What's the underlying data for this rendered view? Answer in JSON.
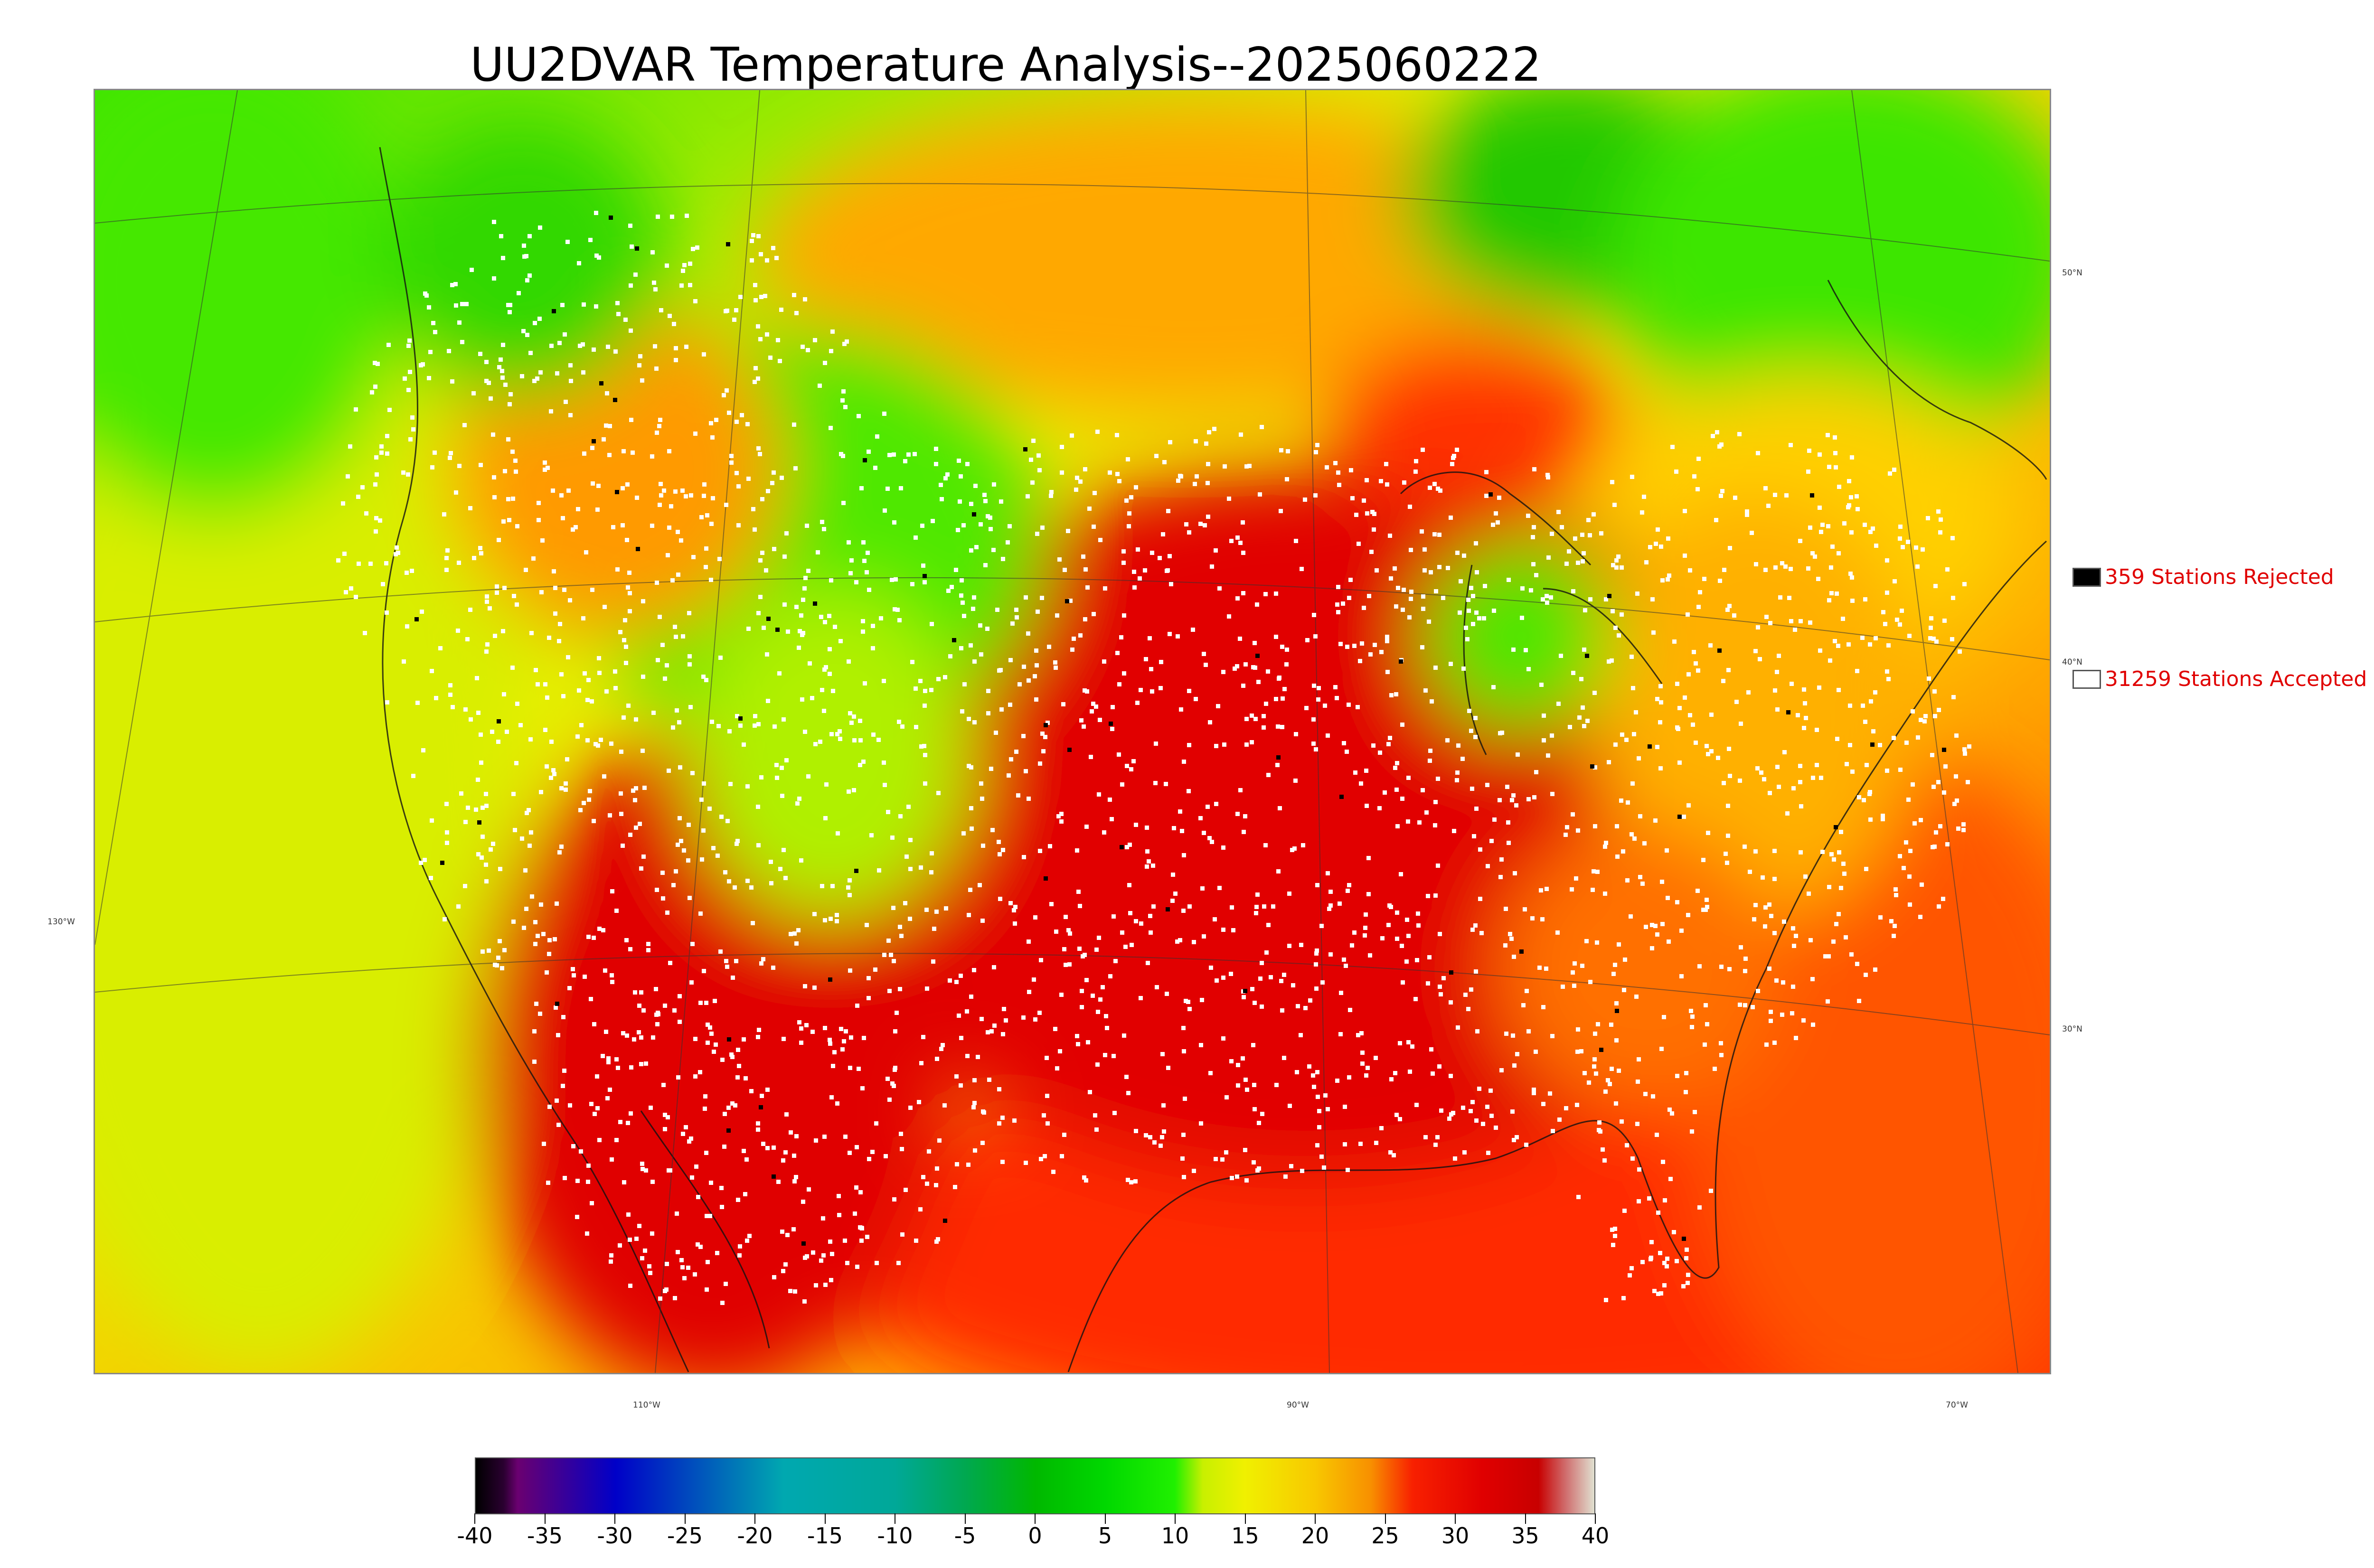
{
  "title": "UU2DVAR Temperature Analysis--2025060222",
  "graticule": {
    "lat_labels": [
      "50°N",
      "40°N",
      "30°N"
    ],
    "lon_labels": [
      "130°W",
      "110°W",
      "90°W",
      "70°W"
    ]
  },
  "legend": {
    "rejected": {
      "label": "359 Stations Rejected",
      "color": "#000000"
    },
    "accepted": {
      "label": "31259 Stations Accepted",
      "color": "#ffffff"
    }
  },
  "colorbar": {
    "ticks": [
      "-40",
      "-35",
      "-30",
      "-25",
      "-20",
      "-15",
      "-10",
      "-5",
      "0",
      "5",
      "10",
      "15",
      "20",
      "25",
      "30",
      "35",
      "40"
    ],
    "range": [
      -40,
      40
    ],
    "stops": [
      {
        "value": -40,
        "color": "#000000"
      },
      {
        "value": -38,
        "color": "#2a0030"
      },
      {
        "value": -37,
        "color": "#6a0070"
      },
      {
        "value": -30,
        "color": "#0000c8"
      },
      {
        "value": -22,
        "color": "#0070b8"
      },
      {
        "value": -18,
        "color": "#00a8b0"
      },
      {
        "value": -10,
        "color": "#00a898"
      },
      {
        "value": -5,
        "color": "#00a850"
      },
      {
        "value": 0,
        "color": "#00b800"
      },
      {
        "value": 5,
        "color": "#00d800"
      },
      {
        "value": 10,
        "color": "#20f000"
      },
      {
        "value": 12,
        "color": "#c8f000"
      },
      {
        "value": 15,
        "color": "#f0f000"
      },
      {
        "value": 20,
        "color": "#f8c800"
      },
      {
        "value": 24,
        "color": "#f89000"
      },
      {
        "value": 27,
        "color": "#f82000"
      },
      {
        "value": 32,
        "color": "#e00000"
      },
      {
        "value": 36,
        "color": "#c80000"
      },
      {
        "value": 38,
        "color": "#d07070"
      },
      {
        "value": 40,
        "color": "#e0e0d0"
      }
    ]
  },
  "colors": {
    "ocean_pacific": "#e6ef00",
    "ocean_atlantic_south": "#ff5a00",
    "hot": "#e30000",
    "warm": "#ff9a00",
    "mild": "#c8f000",
    "cool": "#40f000",
    "cold": "#00c000"
  }
}
